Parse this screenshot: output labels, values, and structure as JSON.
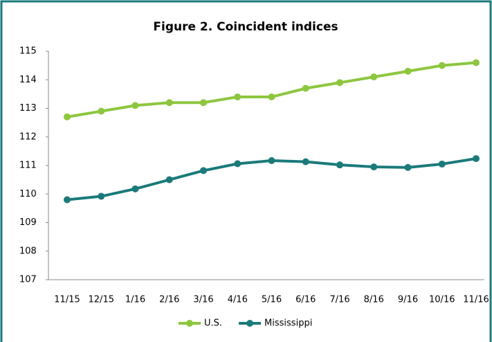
{
  "chart_data": {
    "type": "line",
    "title": "Figure 2. Coincident indices",
    "categories": [
      "11/15",
      "12/15",
      "1/16",
      "2/16",
      "3/16",
      "4/16",
      "5/16",
      "6/16",
      "7/16",
      "8/16",
      "9/16",
      "10/16",
      "11/16"
    ],
    "series": [
      {
        "name": "U.S.",
        "color": "#8dc63f",
        "values": [
          112.7,
          112.9,
          113.1,
          113.2,
          113.2,
          113.4,
          113.4,
          113.7,
          113.9,
          114.1,
          114.3,
          114.5,
          114.6
        ]
      },
      {
        "name": "Mississippi",
        "color": "#1b7a7a",
        "values": [
          109.8,
          109.92,
          110.18,
          110.5,
          110.82,
          111.06,
          111.17,
          111.13,
          111.02,
          110.95,
          110.93,
          111.05,
          111.24
        ]
      }
    ],
    "ylim": [
      107,
      115
    ],
    "yticks": [
      107,
      108,
      109,
      110,
      111,
      112,
      113,
      114,
      115
    ],
    "grid": false,
    "legend": "bottom"
  }
}
